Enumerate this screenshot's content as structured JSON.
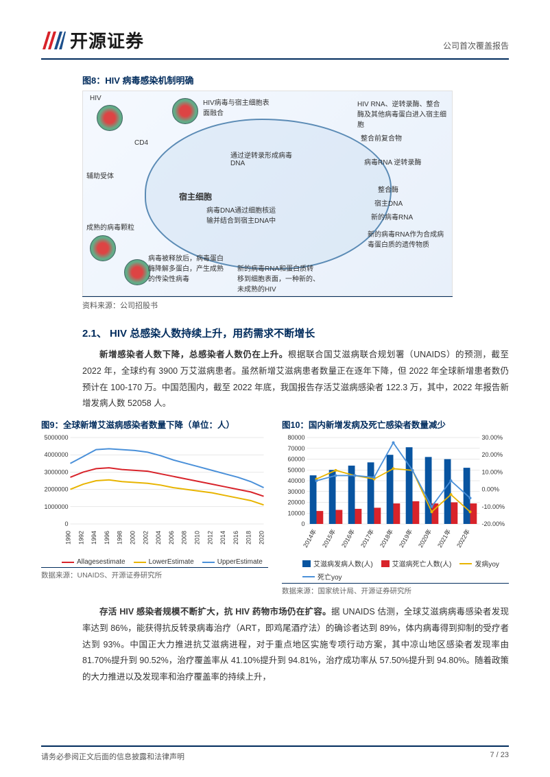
{
  "header": {
    "company_name": "开源证券",
    "report_type": "公司首次覆盖报告",
    "logo_colors": {
      "red": "#d8232a",
      "blue": "#1c4f8b"
    }
  },
  "figure8": {
    "title": "图8：HIV 病毒感染机制明确",
    "source_label": "资料来源：公司招股书",
    "labels": {
      "hiv": "HIV",
      "host_cell": "宿主细胞",
      "step1": "HIV病毒与宿主细胞表面融合",
      "step2": "HIV RNA、逆转录酶、整合酶及其他病毒蛋白进入宿主细胞",
      "step3": "通过逆转录形成病毒DNA",
      "step4": "病毒DNA通过细胞核运输并结合到宿主DNA中",
      "step5": "新的病毒RNA作为合成病毒蛋白质的遗传物质",
      "mature": "成熟的病毒颗粒",
      "reverse": "病毒RNA  逆转录酶",
      "integrase": "整合酶",
      "host_dna": "宿主DNA",
      "new_rna": "新的病毒RNA",
      "co_receptor": "辅助受体",
      "cd4": "CD4",
      "integrase_pre": "整合前复合物",
      "release": "病毒被释放后，病毒蛋白酶降解多蛋白，产生成熟的传染性病毒",
      "assembly": "新的病毒RNA和蛋白质转移到细胞表面，一种新的、未成熟的HIV"
    }
  },
  "section21": {
    "heading": "2.1、 HIV 总感染人数持续上升，用药需求不断增长",
    "para1_bold": "新增感染者人数下降，总感染者人数仍在上升。",
    "para1_rest": "根据联合国艾滋病联合规划署（UNAIDS）的预测，截至 2022 年，全球约有 3900 万艾滋病患者。虽然新增艾滋病患者数量正在逐年下降，但 2022 年全球新增患者数仍预计在 100-170 万。中国范围内，截至 2022 年底，我国报告存活艾滋病感染者 122.3 万，其中，2022 年报告新增发病人数 52058 人。"
  },
  "figure9": {
    "title": "图9：全球新增艾滋病感染者数量下降（单位：人）",
    "source": "数据来源：UNAIDS、开源证券研究所",
    "type": "line",
    "x_labels": [
      "1990",
      "1992",
      "1994",
      "1996",
      "1998",
      "2000",
      "2002",
      "2004",
      "2006",
      "2008",
      "2010",
      "2012",
      "2014",
      "2016",
      "2018",
      "2020"
    ],
    "ylim": [
      0,
      5000000
    ],
    "ytick_step": 1000000,
    "y_ticks": [
      "0",
      "1000000",
      "2000000",
      "3000000",
      "4000000",
      "5000000"
    ],
    "series": [
      {
        "name": "Allagesestimate",
        "color": "#d8232a",
        "values": [
          2700000,
          3000000,
          3200000,
          3250000,
          3150000,
          3100000,
          3050000,
          2900000,
          2750000,
          2600000,
          2450000,
          2300000,
          2150000,
          2000000,
          1850000,
          1600000
        ]
      },
      {
        "name": "LowerEstimate",
        "color": "#e8b400",
        "values": [
          2000000,
          2300000,
          2500000,
          2550000,
          2450000,
          2400000,
          2350000,
          2250000,
          2100000,
          2000000,
          1900000,
          1800000,
          1650000,
          1500000,
          1350000,
          1100000
        ]
      },
      {
        "name": "UpperEstimate",
        "color": "#4a90d9",
        "values": [
          3500000,
          3900000,
          4300000,
          4350000,
          4300000,
          4250000,
          4150000,
          3950000,
          3700000,
          3500000,
          3300000,
          3100000,
          2900000,
          2700000,
          2450000,
          2100000
        ]
      }
    ],
    "line_width": 2,
    "grid_color": "#d0d0d0",
    "background": "#ffffff",
    "axis_fontsize": 9
  },
  "figure10": {
    "title": "图10：国内新增发病及死亡感染者数量减少",
    "source": "数据来源：国家统计局、开源证券研究所",
    "type": "bar+line",
    "x_labels": [
      "2014年",
      "2015年",
      "2016年",
      "2017年",
      "2018年",
      "2019年",
      "2020年",
      "2021年",
      "2022年"
    ],
    "y1_lim": [
      0,
      80000
    ],
    "y1_tick_step": 10000,
    "y1_ticks": [
      "0",
      "10000",
      "20000",
      "30000",
      "40000",
      "50000",
      "60000",
      "70000",
      "80000"
    ],
    "y2_lim": [
      -20,
      30
    ],
    "y2_tick_step": 10,
    "y2_ticks": [
      "-20.00%",
      "-10.00%",
      "0.00%",
      "10.00%",
      "20.00%",
      "30.00%"
    ],
    "bars": [
      {
        "name": "艾滋病发病人数(人)",
        "color": "#0854a0",
        "values": [
          45000,
          50000,
          54000,
          57000,
          64000,
          71000,
          62000,
          60000,
          52000
        ]
      },
      {
        "name": "艾滋病死亡人数(人)",
        "color": "#d8232a",
        "values": [
          12000,
          13000,
          14000,
          15000,
          19000,
          21000,
          19000,
          20000,
          19000
        ]
      }
    ],
    "lines": [
      {
        "name": "发病yoy",
        "color": "#e8b400",
        "values": [
          6,
          11,
          8,
          6,
          12,
          11,
          -13,
          -3,
          -13
        ]
      },
      {
        "name": "死亡yoy",
        "color": "#4a90d9",
        "values": [
          5,
          8,
          8,
          7,
          27,
          11,
          -10,
          5,
          -5
        ]
      }
    ],
    "bar_width": 0.35,
    "line_width": 1.8,
    "grid_color": "#d0d0d0",
    "background": "#ffffff",
    "axis_fontsize": 9
  },
  "para2": {
    "bold": "存活 HIV 感染者规模不断扩大，抗 HIV 药物市场仍在扩容。",
    "rest": "据 UNAIDS 估测，全球艾滋病病毒感染者发现率达到 86%，能获得抗反转录病毒治疗（ART，即鸡尾酒疗法）的确诊者达到 89%，体内病毒得到抑制的受疗者达到 93%。中国正大力推进抗艾滋病进程，对于重点地区实施专项行动方案，其中凉山地区感染者发现率由 81.70%提升到 90.52%，治疗覆盖率从 41.10%提升到 94.81%，治疗成功率从 57.50%提升到 94.80%。随着政策的大力推进以及发现率和治疗覆盖率的持续上升，"
  },
  "footer": {
    "disclaimer": "请务必参阅正文后面的信息披露和法律声明",
    "page": "7 / 23"
  }
}
